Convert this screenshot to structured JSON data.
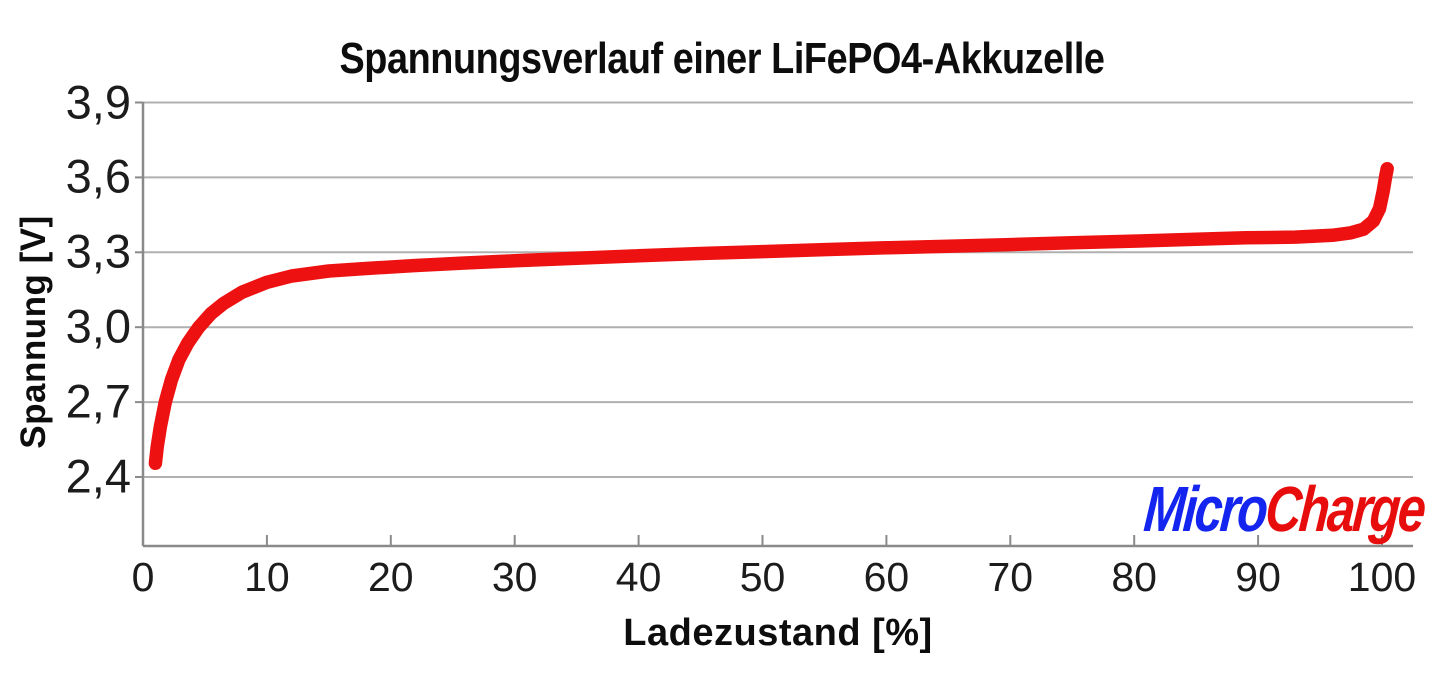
{
  "chart_data": {
    "type": "line",
    "title": "Spannungsverlauf einer LiFePO4-Akkuzelle",
    "xlabel": "Ladezustand [%]",
    "ylabel": "Spannung [V]",
    "grid": "horizontal-only",
    "legend": "none",
    "x_axis": {
      "ticks": [
        0,
        10,
        20,
        30,
        40,
        50,
        60,
        70,
        80,
        90,
        100
      ],
      "range": [
        0,
        102.5
      ]
    },
    "y_axis": {
      "ticks": [
        {
          "value": 3.9,
          "label": "3,9"
        },
        {
          "value": 3.6,
          "label": "3,6"
        },
        {
          "value": 3.3,
          "label": "3,3"
        },
        {
          "value": 3.0,
          "label": "3,0"
        },
        {
          "value": 2.7,
          "label": "2,7"
        },
        {
          "value": 2.4,
          "label": "2,4"
        }
      ],
      "range": [
        2.12,
        3.9
      ]
    },
    "series": [
      {
        "id": "cell-voltage",
        "color": "#ee1111",
        "stroke_width": 13.5,
        "points": [
          [
            1.0,
            2.455
          ],
          [
            1.15,
            2.52
          ],
          [
            1.4,
            2.6
          ],
          [
            1.8,
            2.7
          ],
          [
            2.3,
            2.79
          ],
          [
            2.9,
            2.87
          ],
          [
            3.6,
            2.935
          ],
          [
            4.5,
            3.0
          ],
          [
            5.5,
            3.055
          ],
          [
            6.5,
            3.095
          ],
          [
            8.0,
            3.14
          ],
          [
            10,
            3.18
          ],
          [
            12,
            3.205
          ],
          [
            15,
            3.225
          ],
          [
            18,
            3.235
          ],
          [
            22,
            3.247
          ],
          [
            26,
            3.257
          ],
          [
            30,
            3.266
          ],
          [
            35,
            3.276
          ],
          [
            40,
            3.286
          ],
          [
            45,
            3.295
          ],
          [
            50,
            3.303
          ],
          [
            55,
            3.311
          ],
          [
            60,
            3.318
          ],
          [
            65,
            3.324
          ],
          [
            70,
            3.331
          ],
          [
            75,
            3.338
          ],
          [
            80,
            3.345
          ],
          [
            85,
            3.352
          ],
          [
            89,
            3.358
          ],
          [
            93,
            3.361
          ],
          [
            96,
            3.368
          ],
          [
            97.5,
            3.378
          ],
          [
            98.5,
            3.392
          ],
          [
            99.3,
            3.425
          ],
          [
            99.8,
            3.475
          ],
          [
            100.1,
            3.545
          ],
          [
            100.3,
            3.605
          ],
          [
            100.42,
            3.635
          ]
        ]
      }
    ],
    "colors": {
      "gridline": "#b0b0b0",
      "axis": "#8a8a8a",
      "text": "#1c1c1c"
    }
  },
  "branding": {
    "micro": "Micro",
    "charge": "Charge",
    "micro_color": "#1325ee",
    "charge_color": "#e80d0d"
  }
}
